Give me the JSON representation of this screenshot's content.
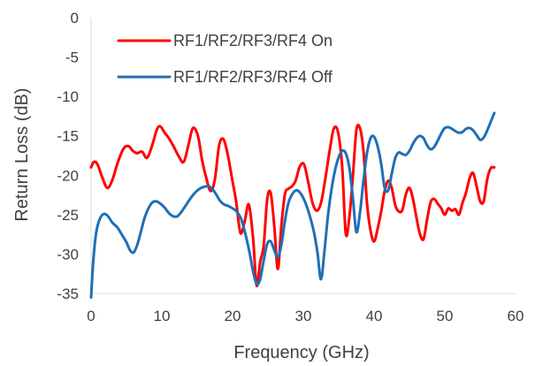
{
  "chart_data": {
    "type": "line",
    "xlabel": "Frequency (GHz)",
    "ylabel": "Return Loss (dB)",
    "xlim": [
      0,
      60
    ],
    "ylim": [
      -35,
      0
    ],
    "xticks": [
      0,
      10,
      20,
      30,
      40,
      50,
      60
    ],
    "yticks": [
      0,
      -5,
      -10,
      -15,
      -20,
      -25,
      -30,
      -35
    ],
    "grid": false,
    "legend_position": "top-left",
    "series": [
      {
        "name": "RF1/RF2/RF3/RF4 On",
        "color": "#ff0000",
        "x": [
          0,
          0.4,
          0.9,
          1.6,
          2.3,
          3.0,
          3.8,
          4.6,
          5.3,
          5.9,
          6.5,
          7.2,
          7.9,
          8.6,
          9.3,
          9.8,
          10.4,
          11.0,
          11.7,
          12.4,
          13.1,
          13.8,
          14.4,
          15.1,
          15.7,
          16.3,
          16.9,
          17.5,
          18.1,
          18.7,
          19.3,
          19.9,
          20.5,
          21.1,
          21.7,
          22.3,
          22.9,
          23.4,
          23.9,
          24.4,
          24.9,
          25.4,
          25.9,
          26.4,
          26.9,
          27.4,
          27.9,
          28.4,
          28.9,
          29.5,
          30.1,
          30.7,
          31.3,
          31.9,
          32.5,
          33.1,
          33.7,
          34.3,
          34.9,
          35.5,
          36.0,
          36.5,
          37.0,
          37.5,
          38.0,
          38.5,
          39.0,
          39.5,
          40.0,
          40.5,
          41.0,
          41.5,
          42.0,
          42.5,
          43.0,
          43.5,
          44.0,
          44.5,
          45.0,
          45.5,
          46.0,
          46.5,
          47.0,
          47.5,
          48.0,
          48.5,
          49.0,
          49.5,
          50.0,
          50.5,
          51.0,
          51.5,
          52.0,
          52.5,
          53.0,
          53.5,
          54.0,
          54.5,
          55.0,
          55.5,
          56.0,
          56.5,
          57.0
        ],
        "y": [
          -19,
          -18.3,
          -18.6,
          -20.3,
          -21.6,
          -20.6,
          -18.3,
          -16.6,
          -16.3,
          -16.9,
          -17.2,
          -17,
          -17.8,
          -16.3,
          -14.2,
          -13.8,
          -14.6,
          -15.3,
          -16.4,
          -17.6,
          -18.3,
          -16,
          -14,
          -15,
          -18.1,
          -20.4,
          -22,
          -20.5,
          -16.2,
          -15.4,
          -17.3,
          -20.3,
          -23.3,
          -27.3,
          -25.9,
          -23.7,
          -28,
          -34,
          -31,
          -28.9,
          -23,
          -22.3,
          -26.5,
          -31.9,
          -26.4,
          -22.4,
          -21.7,
          -21.4,
          -20.7,
          -18.9,
          -18.6,
          -20.9,
          -23.5,
          -24.5,
          -23.5,
          -20.5,
          -17,
          -14.1,
          -14.5,
          -19,
          -27.4,
          -25.4,
          -20.2,
          -14.3,
          -14,
          -16.9,
          -23.5,
          -27,
          -28.4,
          -26.8,
          -24.6,
          -22,
          -20.7,
          -21.6,
          -23.8,
          -24.6,
          -24.4,
          -22.4,
          -21.6,
          -23,
          -25.4,
          -27.5,
          -28.1,
          -25.6,
          -23.4,
          -23,
          -23.6,
          -24.2,
          -25,
          -24.2,
          -24.5,
          -24.3,
          -25,
          -23.5,
          -22.2,
          -20.4,
          -19.7,
          -21.4,
          -23.3,
          -23.3,
          -20.5,
          -19.1,
          -19
        ]
      },
      {
        "name": "RF1/RF2/RF3/RF4 Off",
        "color": "#1f6fb5",
        "x": [
          0,
          0.3,
          0.7,
          1.2,
          1.8,
          2.4,
          3.0,
          3.7,
          4.4,
          5.0,
          5.5,
          6.0,
          6.5,
          7.0,
          7.5,
          8.0,
          8.6,
          9.2,
          9.8,
          10.4,
          11.0,
          11.6,
          12.2,
          12.8,
          13.4,
          14.0,
          14.6,
          15.2,
          15.8,
          16.4,
          17.0,
          17.6,
          18.2,
          18.8,
          19.4,
          20.0,
          20.6,
          21.2,
          21.8,
          22.4,
          22.9,
          23.4,
          23.9,
          24.4,
          24.9,
          25.4,
          25.9,
          26.4,
          26.9,
          27.4,
          27.9,
          28.5,
          29.1,
          29.7,
          30.3,
          30.9,
          31.5,
          32.0,
          32.5,
          33.0,
          33.5,
          34.0,
          34.5,
          35.0,
          35.5,
          36.0,
          36.5,
          37.0,
          37.5,
          38.0,
          38.5,
          39.0,
          39.5,
          40.0,
          40.5,
          41.0,
          41.5,
          42.0,
          42.5,
          43.0,
          43.5,
          44.0,
          44.5,
          45.0,
          45.5,
          46.0,
          46.5,
          47.0,
          47.5,
          48.0,
          48.5,
          49.0,
          49.5,
          50.0,
          50.5,
          51.0,
          51.5,
          52.0,
          52.5,
          53.0,
          53.5,
          54.0,
          54.5,
          55.0,
          55.5,
          56.0,
          56.5,
          57.0
        ],
        "y": [
          -35.5,
          -31,
          -27.4,
          -25.6,
          -24.9,
          -25.2,
          -26,
          -26.6,
          -27.6,
          -28.5,
          -29.5,
          -29.8,
          -28.9,
          -27.3,
          -25.6,
          -24.4,
          -23.5,
          -23.3,
          -23.6,
          -24.1,
          -24.8,
          -25.2,
          -25.2,
          -24.6,
          -23.8,
          -23,
          -22.3,
          -21.8,
          -21.5,
          -21.4,
          -21.6,
          -22.3,
          -23.2,
          -23.7,
          -23.9,
          -24.2,
          -24.6,
          -25.5,
          -27.4,
          -29.8,
          -32.2,
          -33.8,
          -33.2,
          -30.8,
          -28.7,
          -28.4,
          -29.5,
          -30.4,
          -28.8,
          -25.8,
          -23.5,
          -22.3,
          -21.9,
          -22.4,
          -23.5,
          -25.1,
          -27.2,
          -29.8,
          -33.2,
          -29.5,
          -25,
          -21.7,
          -19.3,
          -17.7,
          -16.9,
          -17.2,
          -19,
          -22.8,
          -27.2,
          -24.8,
          -20.7,
          -17.2,
          -15.3,
          -15.1,
          -16.3,
          -18.5,
          -21.6,
          -21.9,
          -19.8,
          -17.8,
          -17.1,
          -17.3,
          -17.4,
          -16.9,
          -16,
          -15.3,
          -15,
          -15.3,
          -16.2,
          -16.7,
          -16.4,
          -15.6,
          -14.7,
          -14,
          -13.9,
          -14.1,
          -14.4,
          -14.6,
          -14.5,
          -14.1,
          -14,
          -14.3,
          -14.9,
          -15.5,
          -15.2,
          -14.3,
          -13.2,
          -12.1
        ]
      }
    ]
  }
}
